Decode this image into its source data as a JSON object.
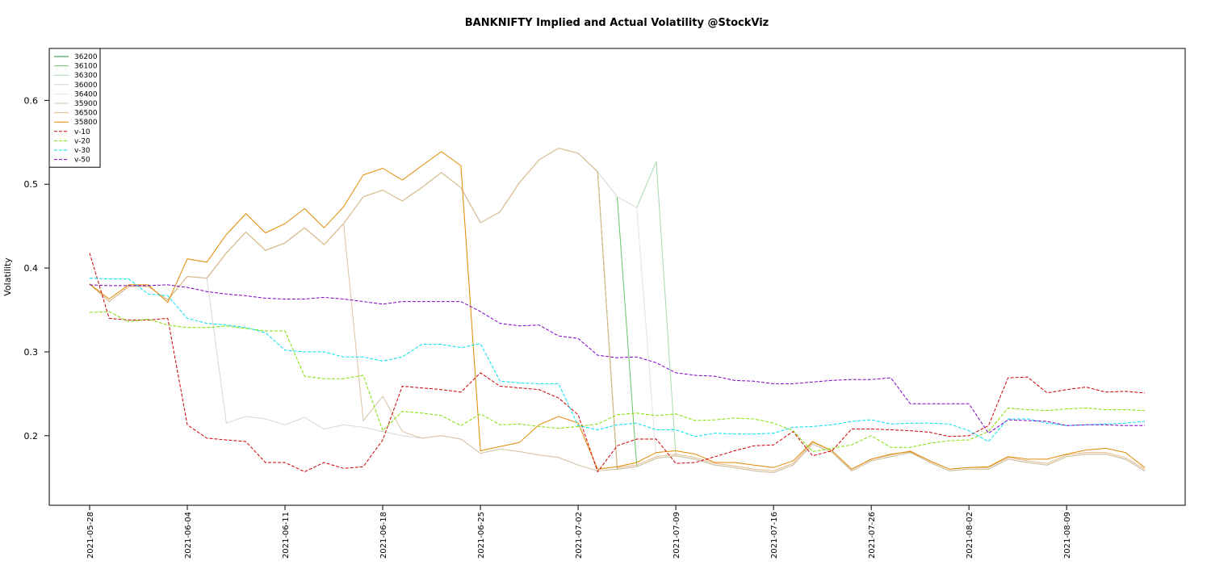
{
  "chart_data": {
    "type": "line",
    "title": "BANKNIFTY Implied and Actual Volatility @StockViz",
    "y_label": "Volatility",
    "categories": [
      "2021-05-28",
      null,
      null,
      null,
      null,
      "2021-06-04",
      null,
      null,
      null,
      null,
      "2021-06-11",
      null,
      null,
      null,
      null,
      "2021-06-18",
      null,
      null,
      null,
      null,
      "2021-06-25",
      null,
      null,
      null,
      null,
      "2021-07-02",
      null,
      null,
      null,
      null,
      "2021-07-09",
      null,
      null,
      null,
      null,
      "2021-07-16",
      null,
      null,
      null,
      null,
      "2021-07-26",
      null,
      null,
      null,
      null,
      "2021-08-02",
      null,
      null,
      null,
      null,
      "2021-08-09",
      null,
      null,
      null,
      null
    ],
    "ylim": [
      0.117,
      0.662
    ],
    "yticks": [
      0.2,
      0.3,
      0.4,
      0.5,
      0.6
    ],
    "legend": "top-left",
    "series": [
      {
        "name": "36200",
        "color": "#1a9641",
        "dashed": false,
        "values": [
          0.381,
          0.36,
          0.378,
          0.378,
          0.362,
          0.39,
          0.388,
          0.418,
          0.443,
          0.421,
          0.43,
          0.448,
          0.428,
          0.453,
          0.485,
          0.493,
          0.48,
          0.496,
          0.514,
          0.496,
          0.454,
          0.467,
          0.502,
          0.529,
          0.543,
          0.537,
          0.515,
          0.16,
          0.163,
          0.173,
          0.176,
          0.172,
          0.165,
          0.162,
          0.158,
          0.156,
          0.165,
          0.19,
          0.18,
          0.158,
          0.17,
          0.175,
          0.18,
          0.168,
          0.158,
          0.16,
          0.16,
          0.172,
          0.168,
          0.165,
          0.175,
          0.178,
          0.178,
          0.172,
          0.158
        ]
      },
      {
        "name": "36100",
        "color": "#66c266",
        "dashed": false,
        "values": [
          0.381,
          0.36,
          0.378,
          0.378,
          0.362,
          0.39,
          0.388,
          0.418,
          0.443,
          0.421,
          0.43,
          0.448,
          0.428,
          0.453,
          0.485,
          0.493,
          0.48,
          0.496,
          0.514,
          0.496,
          0.454,
          0.467,
          0.502,
          0.529,
          0.543,
          0.537,
          0.515,
          0.485,
          0.163,
          0.173,
          0.176,
          0.172,
          0.165,
          0.162,
          0.158,
          0.156,
          0.165,
          0.19,
          0.18,
          0.158,
          0.17,
          0.175,
          0.18,
          0.168,
          0.158,
          0.16,
          0.16,
          0.172,
          0.168,
          0.165,
          0.175,
          0.178,
          0.178,
          0.172,
          0.158
        ]
      },
      {
        "name": "36300",
        "color": "#a6d9b0",
        "dashed": false,
        "values": [
          0.381,
          0.36,
          0.378,
          0.378,
          0.362,
          0.39,
          0.388,
          0.418,
          0.443,
          0.421,
          0.43,
          0.448,
          0.428,
          0.453,
          0.485,
          0.493,
          0.48,
          0.496,
          0.514,
          0.496,
          0.454,
          0.467,
          0.502,
          0.529,
          0.543,
          0.537,
          0.515,
          0.485,
          0.472,
          0.527,
          0.176,
          0.172,
          0.165,
          0.162,
          0.158,
          0.156,
          0.165,
          0.19,
          0.18,
          0.158,
          0.17,
          0.175,
          0.18,
          0.168,
          0.158,
          0.16,
          0.16,
          0.172,
          0.168,
          0.165,
          0.175,
          0.178,
          0.178,
          0.172,
          0.158
        ]
      },
      {
        "name": "36000",
        "color": "#d6d6d6",
        "dashed": false,
        "values": [
          0.381,
          0.36,
          0.378,
          0.378,
          0.362,
          0.39,
          0.388,
          0.215,
          0.223,
          0.22,
          0.213,
          0.222,
          0.208,
          0.213,
          0.21,
          0.205,
          0.2,
          0.197,
          0.2,
          0.196,
          0.179,
          0.184,
          0.181,
          0.177,
          0.174,
          0.165,
          0.158,
          0.16,
          0.163,
          0.173,
          0.176,
          0.172,
          0.165,
          0.162,
          0.158,
          0.156,
          0.165,
          0.19,
          0.18,
          0.158,
          0.17,
          0.175,
          0.18,
          0.168,
          0.158,
          0.16,
          0.16,
          0.172,
          0.168,
          0.165,
          0.175,
          0.178,
          0.178,
          0.172,
          0.158
        ]
      },
      {
        "name": "36400",
        "color": "#e3e3e3",
        "dashed": false,
        "values": [
          0.381,
          0.36,
          0.378,
          0.378,
          0.362,
          0.39,
          0.388,
          0.418,
          0.443,
          0.421,
          0.43,
          0.448,
          0.428,
          0.453,
          0.485,
          0.493,
          0.48,
          0.496,
          0.514,
          0.496,
          0.454,
          0.467,
          0.502,
          0.529,
          0.543,
          0.537,
          0.515,
          0.485,
          0.472,
          0.173,
          0.176,
          0.172,
          0.165,
          0.162,
          0.158,
          0.156,
          0.165,
          0.19,
          0.18,
          0.158,
          0.17,
          0.175,
          0.18,
          0.168,
          0.158,
          0.16,
          0.16,
          0.172,
          0.168,
          0.165,
          0.175,
          0.178,
          0.178,
          0.172,
          0.158
        ]
      },
      {
        "name": "35900",
        "color": "#d9c2a3",
        "dashed": false,
        "values": [
          0.381,
          0.36,
          0.378,
          0.378,
          0.362,
          0.39,
          0.388,
          0.418,
          0.443,
          0.421,
          0.43,
          0.448,
          0.428,
          0.453,
          0.218,
          0.247,
          0.205,
          0.197,
          0.2,
          0.196,
          0.179,
          0.184,
          0.181,
          0.177,
          0.174,
          0.165,
          0.158,
          0.16,
          0.163,
          0.173,
          0.176,
          0.172,
          0.165,
          0.162,
          0.158,
          0.156,
          0.165,
          0.19,
          0.18,
          0.158,
          0.17,
          0.175,
          0.18,
          0.168,
          0.158,
          0.16,
          0.16,
          0.172,
          0.168,
          0.165,
          0.175,
          0.178,
          0.178,
          0.172,
          0.158
        ]
      },
      {
        "name": "36500",
        "color": "#e8b98c",
        "dashed": false,
        "values": [
          0.381,
          0.36,
          0.378,
          0.378,
          0.362,
          0.39,
          0.388,
          0.418,
          0.443,
          0.421,
          0.43,
          0.448,
          0.428,
          0.453,
          0.485,
          0.493,
          0.48,
          0.496,
          0.514,
          0.496,
          0.454,
          0.467,
          0.502,
          0.529,
          0.543,
          0.537,
          0.515,
          0.162,
          0.165,
          0.175,
          0.178,
          0.174,
          0.167,
          0.164,
          0.16,
          0.158,
          0.167,
          0.192,
          0.182,
          0.16,
          0.172,
          0.177,
          0.182,
          0.17,
          0.16,
          0.162,
          0.162,
          0.174,
          0.17,
          0.167,
          0.177,
          0.18,
          0.18,
          0.174,
          0.16
        ]
      },
      {
        "name": "35800",
        "color": "#e08a00",
        "dashed": false,
        "values": [
          0.381,
          0.363,
          0.38,
          0.38,
          0.359,
          0.411,
          0.407,
          0.44,
          0.465,
          0.442,
          0.453,
          0.471,
          0.448,
          0.473,
          0.511,
          0.519,
          0.505,
          0.522,
          0.539,
          0.522,
          0.182,
          0.187,
          0.192,
          0.213,
          0.223,
          0.215,
          0.16,
          0.163,
          0.168,
          0.18,
          0.182,
          0.178,
          0.168,
          0.168,
          0.165,
          0.162,
          0.17,
          0.193,
          0.182,
          0.16,
          0.172,
          0.178,
          0.181,
          0.17,
          0.16,
          0.162,
          0.163,
          0.175,
          0.172,
          0.172,
          0.178,
          0.183,
          0.185,
          0.18,
          0.162
        ]
      },
      {
        "name": "v-10",
        "color": "#cc0000",
        "dashed": true,
        "values": [
          0.418,
          0.34,
          0.338,
          0.338,
          0.34,
          0.213,
          0.197,
          0.195,
          0.193,
          0.168,
          0.168,
          0.157,
          0.168,
          0.161,
          0.163,
          0.195,
          0.259,
          0.257,
          0.255,
          0.252,
          0.275,
          0.259,
          0.257,
          0.255,
          0.245,
          0.225,
          0.157,
          0.188,
          0.196,
          0.196,
          0.167,
          0.168,
          0.175,
          0.182,
          0.188,
          0.189,
          0.205,
          0.176,
          0.182,
          0.208,
          0.208,
          0.207,
          0.206,
          0.204,
          0.199,
          0.2,
          0.212,
          0.269,
          0.27,
          0.251,
          0.255,
          0.258,
          0.252,
          0.253,
          0.251
        ]
      },
      {
        "name": "v-20",
        "color": "#80e000",
        "dashed": true,
        "values": [
          0.347,
          0.348,
          0.336,
          0.339,
          0.332,
          0.329,
          0.329,
          0.331,
          0.328,
          0.325,
          0.325,
          0.271,
          0.268,
          0.268,
          0.272,
          0.206,
          0.229,
          0.227,
          0.224,
          0.212,
          0.226,
          0.213,
          0.214,
          0.211,
          0.209,
          0.211,
          0.214,
          0.225,
          0.227,
          0.224,
          0.226,
          0.218,
          0.219,
          0.221,
          0.22,
          0.215,
          0.206,
          0.181,
          0.185,
          0.189,
          0.2,
          0.186,
          0.186,
          0.191,
          0.194,
          0.195,
          0.205,
          0.233,
          0.231,
          0.23,
          0.232,
          0.233,
          0.231,
          0.231,
          0.23
        ]
      },
      {
        "name": "v-30",
        "color": "#00e0ee",
        "dashed": true,
        "values": [
          0.388,
          0.387,
          0.387,
          0.369,
          0.367,
          0.34,
          0.334,
          0.332,
          0.329,
          0.323,
          0.302,
          0.3,
          0.3,
          0.294,
          0.294,
          0.289,
          0.294,
          0.309,
          0.309,
          0.305,
          0.31,
          0.265,
          0.263,
          0.262,
          0.262,
          0.212,
          0.207,
          0.213,
          0.215,
          0.207,
          0.207,
          0.199,
          0.203,
          0.202,
          0.202,
          0.203,
          0.21,
          0.211,
          0.213,
          0.217,
          0.219,
          0.214,
          0.215,
          0.215,
          0.214,
          0.206,
          0.193,
          0.22,
          0.22,
          0.215,
          0.212,
          0.213,
          0.214,
          0.215,
          0.217
        ]
      },
      {
        "name": "v-50",
        "color": "#8000c8",
        "dashed": true,
        "values": [
          0.38,
          0.379,
          0.379,
          0.379,
          0.38,
          0.377,
          0.372,
          0.369,
          0.367,
          0.364,
          0.363,
          0.363,
          0.365,
          0.363,
          0.36,
          0.357,
          0.36,
          0.36,
          0.36,
          0.36,
          0.348,
          0.334,
          0.331,
          0.332,
          0.319,
          0.316,
          0.296,
          0.293,
          0.294,
          0.287,
          0.275,
          0.272,
          0.271,
          0.266,
          0.265,
          0.262,
          0.262,
          0.264,
          0.266,
          0.267,
          0.267,
          0.269,
          0.238,
          0.238,
          0.238,
          0.238,
          0.203,
          0.219,
          0.218,
          0.217,
          0.212,
          0.213,
          0.213,
          0.212,
          0.212
        ]
      }
    ]
  }
}
